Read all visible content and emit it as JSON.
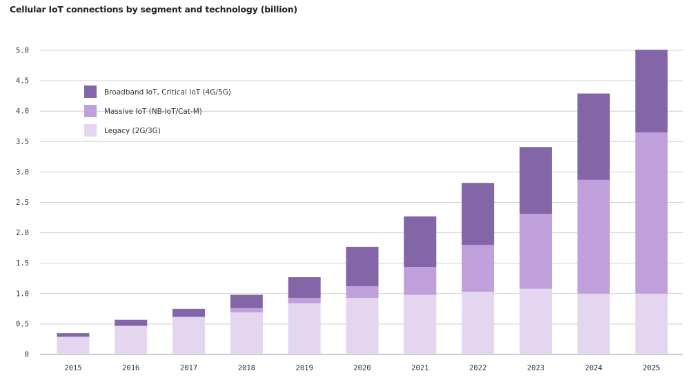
{
  "chart_data": {
    "type": "bar",
    "stacked": true,
    "title": "Cellular IoT connections by segment and technology (billion)",
    "xlabel": "",
    "ylabel": "",
    "categories": [
      "2015",
      "2016",
      "2017",
      "2018",
      "2019",
      "2020",
      "2021",
      "2022",
      "2023",
      "2024",
      "2025"
    ],
    "ylim": [
      0,
      5.0
    ],
    "yticks": [
      0,
      0.5,
      1.0,
      1.5,
      2.0,
      2.5,
      3.0,
      3.5,
      4.0,
      4.5,
      5.0
    ],
    "ytick_labels": [
      "0",
      "0.5",
      "1.0",
      "1.5",
      "2.0",
      "2.5",
      "3.0",
      "3.5",
      "4.0",
      "4.5",
      "5.0"
    ],
    "grid": true,
    "legend_position": "top-left",
    "series": [
      {
        "name": "Legacy (2G/3G)",
        "color": "#e3d6ee",
        "values": [
          0.29,
          0.47,
          0.61,
          0.69,
          0.84,
          0.93,
          0.98,
          1.03,
          1.08,
          1.0,
          1.0
        ]
      },
      {
        "name": "Massive IoT (NB-IoT/Cat-M)",
        "color": "#bfa0da",
        "values": [
          0.0,
          0.0,
          0.01,
          0.07,
          0.09,
          0.19,
          0.46,
          0.77,
          1.23,
          1.87,
          2.65
        ]
      },
      {
        "name": "Broadband IoT, Critical IoT (4G/5G)",
        "color": "#8366a8",
        "values": [
          0.06,
          0.1,
          0.13,
          0.22,
          0.34,
          0.65,
          0.83,
          1.02,
          1.1,
          1.42,
          1.36
        ]
      }
    ],
    "legend_order": [
      2,
      1,
      0
    ]
  }
}
